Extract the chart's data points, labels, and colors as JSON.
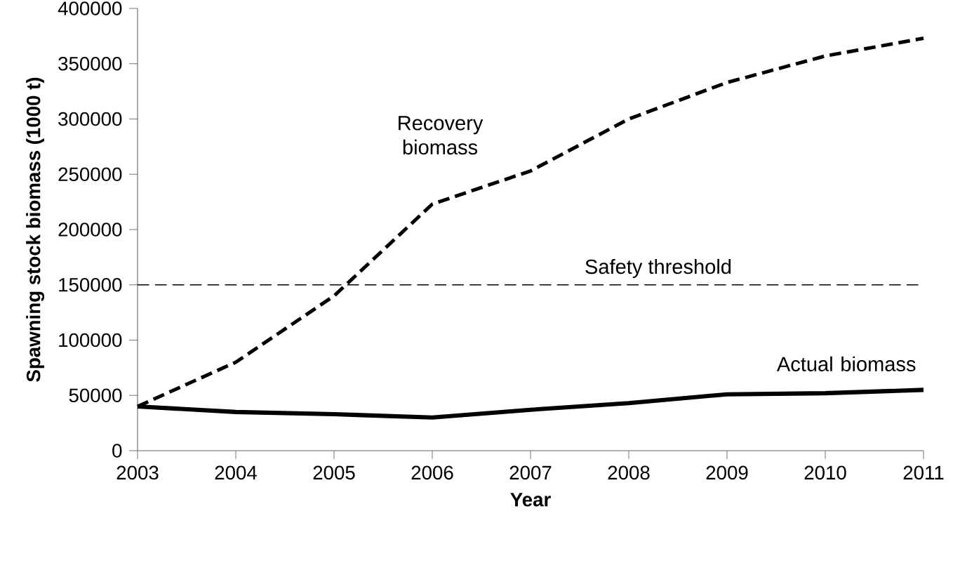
{
  "chart_data": {
    "type": "line",
    "xlabel": "Year",
    "ylabel": "Spawning stock biomass (1000 t)",
    "x": [
      2003,
      2004,
      2005,
      2006,
      2007,
      2008,
      2009,
      2010,
      2011
    ],
    "xlim": [
      2003,
      2011
    ],
    "xticks": [
      2003,
      2004,
      2005,
      2006,
      2007,
      2008,
      2009,
      2010,
      2011
    ],
    "ylim": [
      0,
      400000
    ],
    "yticks": [
      0,
      50000,
      100000,
      150000,
      200000,
      250000,
      300000,
      350000,
      400000
    ],
    "grid": false,
    "marker": "none",
    "series": [
      {
        "name": "Recovery biomass",
        "color": "#000000",
        "line_style": "dashed",
        "values": [
          40000,
          80000,
          140000,
          223000,
          253000,
          300000,
          333000,
          357000,
          373000
        ]
      },
      {
        "name": "Actual biomass",
        "color": "#000000",
        "line_style": "solid",
        "values": [
          40000,
          35000,
          33000,
          30000,
          37000,
          43000,
          51000,
          52000,
          55000
        ]
      }
    ],
    "ref_lines": [
      {
        "axis": "y",
        "value": 150000,
        "label": "Safety threshold",
        "color": "#000000",
        "line_style": "dashed"
      }
    ]
  }
}
